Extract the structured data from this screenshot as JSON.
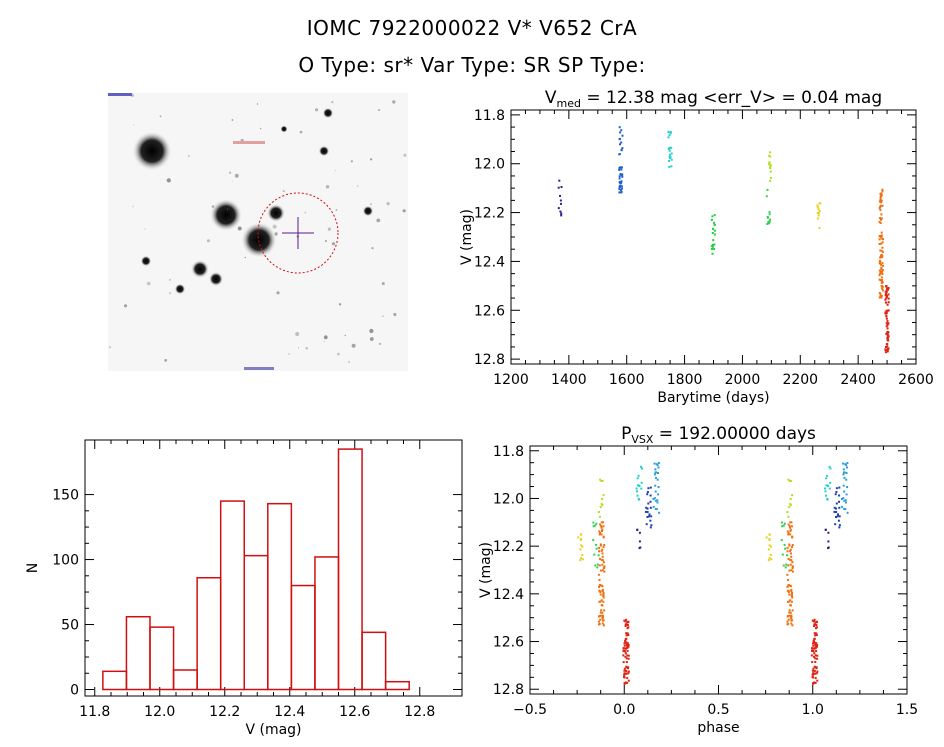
{
  "header": {
    "line1": "IOMC 7922000022     V* V652 CrA",
    "line2": "O Type: sr*  Var Type: SR   SP Type:"
  },
  "image_panel": {
    "label": "",
    "star_field": true,
    "target_circle_color": "#d01010",
    "crosshair_color": "#5a1a8a"
  },
  "chart_data": [
    {
      "id": "lightcurve",
      "type": "scatter",
      "title_main": "V",
      "title_sub": "med",
      "title_rest": " = 12.38 mag <err_V> = 0.04 mag",
      "xlabel": "Barytime (days)",
      "ylabel": "V (mag)",
      "xlim": [
        1200,
        2600
      ],
      "ylim": [
        12.82,
        11.78
      ],
      "xticks": [
        1200,
        1400,
        1600,
        1800,
        2000,
        2200,
        2400,
        2600
      ],
      "yticks": [
        11.8,
        12.0,
        12.2,
        12.4,
        12.6,
        12.8
      ],
      "xtick_labels": [
        "1200",
        "1400",
        "1600",
        "1800",
        "2000",
        "2200",
        "2400",
        "2600"
      ],
      "ytick_labels": [
        "11.8",
        "12.0",
        "12.2",
        "12.4",
        "12.6",
        "12.8"
      ],
      "groups": [
        {
          "t": 1370,
          "ymin": 12.03,
          "ymax": 12.22,
          "color": "#3a1d8c",
          "n": 10
        },
        {
          "t": 1580,
          "ymin": 11.85,
          "ymax": 12.13,
          "color": "#1f5fd0",
          "n": 40
        },
        {
          "t": 1750,
          "ymin": 11.86,
          "ymax": 12.02,
          "color": "#22d0d0",
          "n": 20
        },
        {
          "t": 1900,
          "ymin": 12.21,
          "ymax": 12.37,
          "color": "#20d040",
          "n": 18
        },
        {
          "t": 2090,
          "ymin": 12.1,
          "ymax": 12.27,
          "color": "#30d050",
          "n": 12
        },
        {
          "t": 2095,
          "ymin": 11.92,
          "ymax": 12.08,
          "color": "#b0e020",
          "n": 12
        },
        {
          "t": 2265,
          "ymin": 12.15,
          "ymax": 12.28,
          "color": "#e6d020",
          "n": 12
        },
        {
          "t": 2480,
          "ymin": 12.1,
          "ymax": 12.55,
          "color": "#f07010",
          "n": 90
        },
        {
          "t": 2500,
          "ymin": 12.5,
          "ymax": 12.78,
          "color": "#e02010",
          "n": 70
        }
      ]
    },
    {
      "id": "histogram",
      "type": "bar",
      "xlabel": "V (mag)",
      "ylabel": "N",
      "xlim": [
        11.77,
        12.93
      ],
      "ylim": [
        -5,
        192
      ],
      "xticks": [
        11.8,
        12.0,
        12.2,
        12.4,
        12.6,
        12.8
      ],
      "yticks": [
        0,
        50,
        100,
        150
      ],
      "xtick_labels": [
        "11.8",
        "12.0",
        "12.2",
        "12.4",
        "12.6",
        "12.8"
      ],
      "ytick_labels": [
        "0",
        "50",
        "100",
        "150"
      ],
      "bin_start": 11.825,
      "bin_width": 0.0725,
      "values": [
        14,
        56,
        48,
        15,
        86,
        145,
        103,
        143,
        80,
        102,
        185,
        44,
        6
      ],
      "color": "#d01010"
    },
    {
      "id": "phase",
      "type": "scatter",
      "title_main": "P",
      "title_sub": "VSX",
      "title_rest": " = 192.00000 days",
      "xlabel": "phase",
      "ylabel": "V (mag)",
      "xlim": [
        -0.5,
        1.5
      ],
      "ylim": [
        12.82,
        11.78
      ],
      "xticks": [
        -0.5,
        0.0,
        0.5,
        1.0,
        1.5
      ],
      "yticks": [
        11.8,
        12.0,
        12.2,
        12.4,
        12.6,
        12.8
      ],
      "xtick_labels": [
        "−0.5",
        "0.0",
        "0.5",
        "1.0",
        "1.5"
      ],
      "ytick_labels": [
        "11.8",
        "12.0",
        "12.2",
        "12.4",
        "12.6",
        "12.8"
      ],
      "groups": [
        {
          "p": -0.23,
          "ymin": 12.15,
          "ymax": 12.28,
          "color": "#e6d020",
          "n": 12
        },
        {
          "p": -0.15,
          "ymin": 12.1,
          "ymax": 12.3,
          "color": "#30d050",
          "n": 12
        },
        {
          "p": -0.12,
          "ymin": 11.92,
          "ymax": 12.08,
          "color": "#b0e020",
          "n": 10
        },
        {
          "p": -0.12,
          "ymin": 12.1,
          "ymax": 12.55,
          "color": "#f07010",
          "n": 80
        },
        {
          "p": 0.01,
          "ymin": 12.5,
          "ymax": 12.78,
          "color": "#e02010",
          "n": 70
        },
        {
          "p": 0.08,
          "ymin": 12.13,
          "ymax": 12.22,
          "color": "#3a1d8c",
          "n": 6
        },
        {
          "p": 0.08,
          "ymin": 11.85,
          "ymax": 12.02,
          "color": "#22d0d0",
          "n": 14
        },
        {
          "p": 0.13,
          "ymin": 11.95,
          "ymax": 12.13,
          "color": "#1f3fb0",
          "n": 20
        },
        {
          "p": 0.17,
          "ymin": 11.85,
          "ymax": 12.06,
          "color": "#2aa0e0",
          "n": 25
        }
      ]
    }
  ]
}
